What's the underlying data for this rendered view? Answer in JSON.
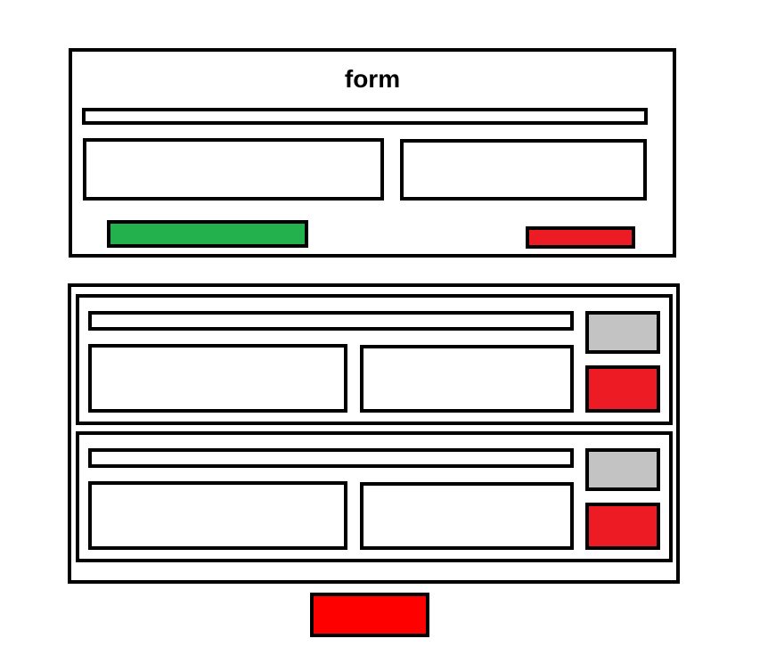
{
  "form": {
    "title": "form"
  },
  "colors": {
    "border": "#000000",
    "primary_button": "#22b14c",
    "cancel_button": "#ed1c24",
    "secondary_button": "#c3c3c3",
    "delete_button": "#ed1c24",
    "bottom_button": "#ff0000"
  },
  "list": {
    "items": [
      {
        "id": "item-1"
      },
      {
        "id": "item-2"
      }
    ]
  }
}
